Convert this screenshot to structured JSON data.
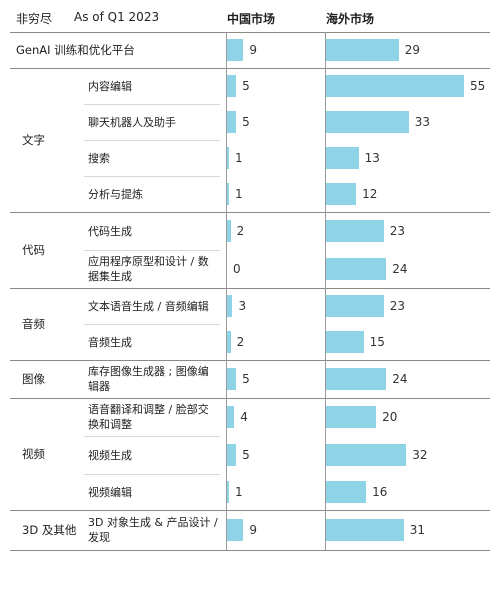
{
  "chart_data": {
    "type": "bar",
    "header": {
      "note": "非穷尽",
      "date": "As of Q1 2023",
      "series_labels": [
        "中国市场",
        "海外市场"
      ]
    },
    "series": [
      {
        "name": "中国市场"
      },
      {
        "name": "海外市场"
      }
    ],
    "xlim": [
      0,
      55
    ],
    "groups": [
      {
        "label": "GenAI 训练和优化平台",
        "rows": [
          {
            "label": "",
            "values": [
              9,
              29
            ]
          }
        ]
      },
      {
        "label": "文字",
        "rows": [
          {
            "label": "内容编辑",
            "values": [
              5,
              55
            ]
          },
          {
            "label": "聊天机器人及助手",
            "values": [
              5,
              33
            ]
          },
          {
            "label": "搜索",
            "values": [
              1,
              13
            ]
          },
          {
            "label": "分析与提炼",
            "values": [
              1,
              12
            ]
          }
        ]
      },
      {
        "label": "代码",
        "rows": [
          {
            "label": "代码生成",
            "values": [
              2,
              23
            ]
          },
          {
            "label": "应用程序原型和设计 / 数据集生成",
            "values": [
              0,
              24
            ]
          }
        ]
      },
      {
        "label": "音频",
        "rows": [
          {
            "label": "文本语音生成 / 音频编辑",
            "values": [
              3,
              23
            ]
          },
          {
            "label": "音频生成",
            "values": [
              2,
              15
            ]
          }
        ]
      },
      {
        "label": "图像",
        "rows": [
          {
            "label": "库存图像生成器 ; 图像编辑器",
            "values": [
              5,
              24
            ]
          }
        ]
      },
      {
        "label": "视频",
        "rows": [
          {
            "label": "语音翻译和调整 / 脸部交换和调整",
            "values": [
              4,
              20
            ]
          },
          {
            "label": "视频生成",
            "values": [
              5,
              32
            ]
          },
          {
            "label": "视频编辑",
            "values": [
              1,
              16
            ]
          }
        ]
      },
      {
        "label": "3D 及其他",
        "rows": [
          {
            "label": "3D 对象生成 & 产品设计 / 发现",
            "values": [
              9,
              31
            ]
          }
        ]
      }
    ]
  }
}
